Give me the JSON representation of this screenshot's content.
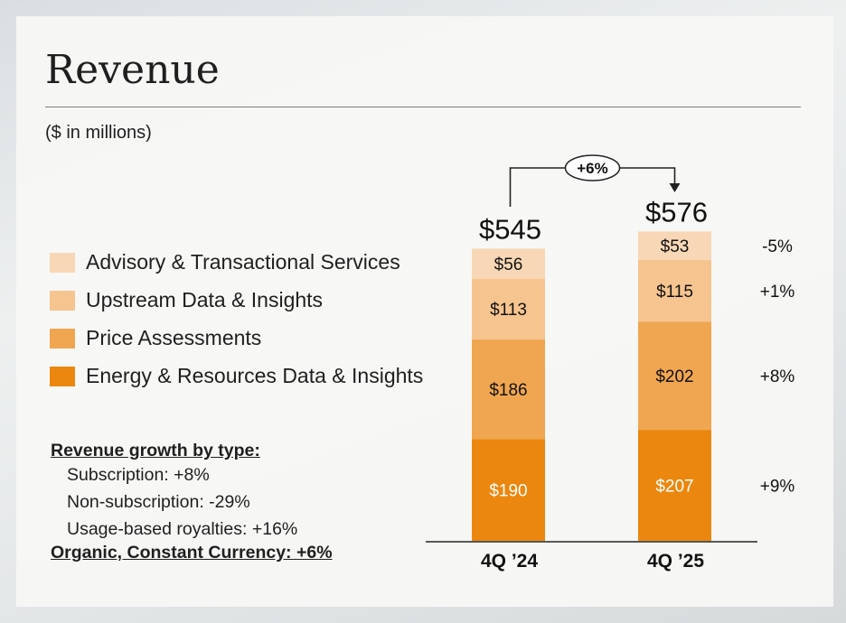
{
  "title": "Revenue",
  "subtitle": "($ in millions)",
  "colors": {
    "advisory": "#f8d7b6",
    "upstream": "#f6c48f",
    "price": "#f0a651",
    "energy": "#eb870e"
  },
  "legend": [
    {
      "label": "Advisory & Transactional Services",
      "color": "#f8d7b6"
    },
    {
      "label": "Upstream Data & Insights",
      "color": "#f6c48f"
    },
    {
      "label": "Price Assessments",
      "color": "#f0a651"
    },
    {
      "label": "Energy & Resources Data & Insights",
      "color": "#eb870e"
    }
  ],
  "growth": {
    "header": "Revenue growth by type:",
    "rows": [
      "Subscription: +8%",
      "Non-subscription: -29%",
      "Usage-based royalties: +16%"
    ],
    "footer": "Organic, Constant Currency: +6%"
  },
  "chart_data": {
    "type": "bar",
    "stacked": true,
    "categories": [
      "4Q ’24",
      "4Q ’25"
    ],
    "series": [
      {
        "name": "Energy & Resources Data & Insights",
        "values": [
          190,
          207
        ],
        "labels": [
          "$190",
          "$207"
        ],
        "color": "#eb870e",
        "label_color": "#ffffff"
      },
      {
        "name": "Price Assessments",
        "values": [
          186,
          202
        ],
        "labels": [
          "$186",
          "$202"
        ],
        "color": "#f0a651",
        "label_color": "#111111"
      },
      {
        "name": "Upstream Data & Insights",
        "values": [
          113,
          115
        ],
        "labels": [
          "$113",
          "$115"
        ],
        "color": "#f6c48f",
        "label_color": "#111111"
      },
      {
        "name": "Advisory & Transactional Services",
        "values": [
          56,
          53
        ],
        "labels": [
          "$56",
          "$53"
        ],
        "color": "#f8d7b6",
        "label_color": "#111111"
      }
    ],
    "totals": [
      545,
      576
    ],
    "total_labels": [
      "$545",
      "$576"
    ],
    "change_labels": [
      "+9%",
      "+8%",
      "+1%",
      "-5%"
    ],
    "growth_label": "+6%",
    "ylim": [
      0,
      576
    ]
  }
}
